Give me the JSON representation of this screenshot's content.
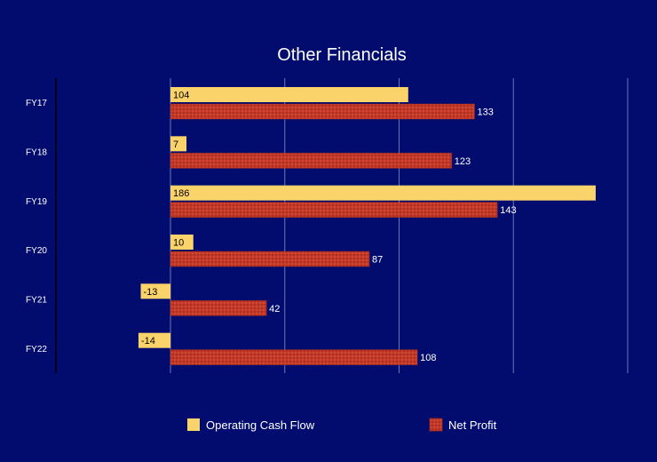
{
  "chart_data": {
    "type": "bar",
    "orientation": "horizontal",
    "title": "Other Financials",
    "categories": [
      "FY17",
      "FY18",
      "FY19",
      "FY20",
      "FY21",
      "FY22"
    ],
    "series": [
      {
        "name": "Operating Cash Flow",
        "values": [
          104,
          7,
          186,
          10,
          -13,
          -14
        ],
        "color": "#fad46b"
      },
      {
        "name": "Net Profit",
        "values": [
          133,
          123,
          143,
          87,
          42,
          108
        ],
        "color": "#c0392b"
      }
    ],
    "xlim": [
      -50,
      200
    ],
    "grid": true,
    "legend_position": "bottom"
  }
}
